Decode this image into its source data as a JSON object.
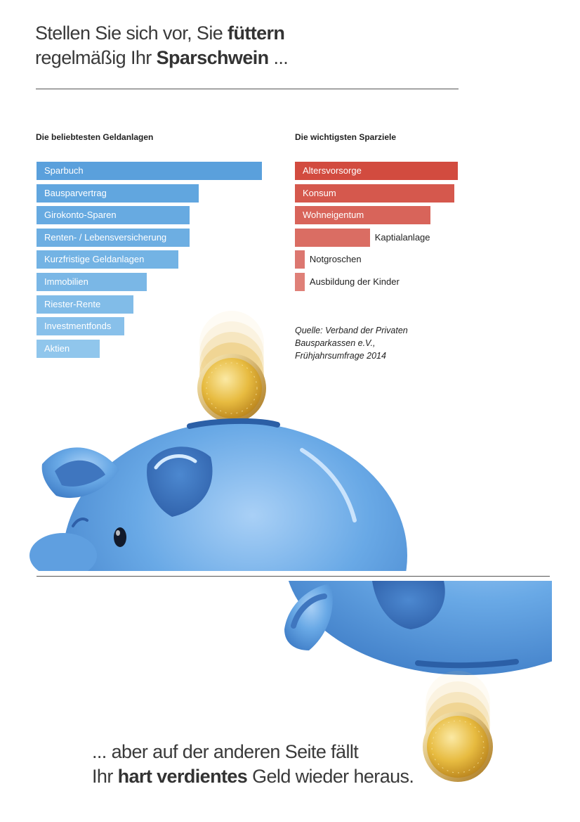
{
  "headline": {
    "line1_pre": "Stellen Sie sich vor, Sie ",
    "line1_bold": "füttern",
    "line2_pre": "regelmäßig Ihr ",
    "line2_bold": "Sparschwein",
    "line2_post": " ..."
  },
  "footline": {
    "line1": "... aber auf der anderen Seite fällt",
    "line2_pre": "Ihr ",
    "line2_bold": "hart verdientes",
    "line2_post": " Geld wieder heraus."
  },
  "source": {
    "line1": "Quelle: Verband der Privaten",
    "line2": "Bausparkassen e.V.,",
    "line3": "Frühjahrsumfrage 2014"
  },
  "colors": {
    "blue_bars": [
      "#5aa0dc",
      "#61a6df",
      "#67aae1",
      "#6daee2",
      "#73b3e4",
      "#7ab7e6",
      "#81bce8",
      "#88c0ea",
      "#90c6ec"
    ],
    "red_bars": [
      "#d24b3f",
      "#d5584d",
      "#d8645a",
      "#da6d63",
      "#dc7770",
      "#df8078"
    ],
    "pig_blue": "#5b9fe0",
    "coin_gold": "#e3b53a"
  },
  "chart_data": [
    {
      "type": "bar",
      "orientation": "horizontal",
      "title": "Die beliebtesten Geldanlagen",
      "categories": [
        "Sparbuch",
        "Bausparvertrag",
        "Girokonto-Sparen",
        "Renten- / Lebensversicherung",
        "Kurzfristige Geldanlagen",
        "Immobilien",
        "Riester-Rente",
        "Investmentfonds",
        "Aktien"
      ],
      "values": [
        100,
        72,
        68,
        68,
        63,
        49,
        43,
        39,
        28
      ],
      "xlabel": "",
      "ylabel": "",
      "xlim": [
        0,
        100
      ],
      "grid": false
    },
    {
      "type": "bar",
      "orientation": "horizontal",
      "title": "Die wichtigsten Sparziele",
      "categories": [
        "Altersvorsorge",
        "Konsum",
        "Wohneigentum",
        "Kaptialanlage",
        "Notgroschen",
        "Ausbildung der Kinder"
      ],
      "values": [
        100,
        98,
        83,
        46,
        6,
        6
      ],
      "xlabel": "",
      "ylabel": "",
      "xlim": [
        0,
        100
      ],
      "grid": false
    }
  ]
}
